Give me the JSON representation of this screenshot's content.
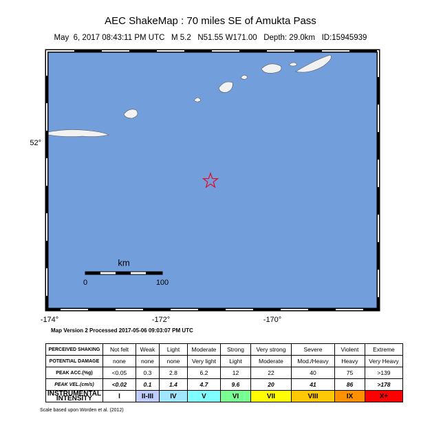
{
  "header": {
    "title": "AEC ShakeMap : 70 miles SE of Amukta Pass",
    "subtitle": "May  6, 2017 08:43:11 PM UTC   M 5.2   N51.55 W171.00   Depth: 29.0km   ID:15945939"
  },
  "map": {
    "lat_labels": [
      "52°"
    ],
    "lon_labels": [
      "-174°",
      "-172°",
      "-170°"
    ],
    "scale": {
      "unit": "km",
      "labels": [
        "0",
        "100"
      ]
    },
    "version": "Map Version 2 Processed 2017-05-06 09:03:07 PM UTC"
  },
  "table": {
    "rows": [
      [
        "PERCEIVED SHAKING",
        "Not felt",
        "Weak",
        "Light",
        "Moderate",
        "Strong",
        "Very strong",
        "Severe",
        "Violent",
        "Extreme"
      ],
      [
        "POTENTIAL DAMAGE",
        "none",
        "none",
        "none",
        "Very light",
        "Light",
        "Moderate",
        "Mod./Heavy",
        "Heavy",
        "Very Heavy"
      ],
      [
        "PEAK ACC.(%g)",
        "<0.05",
        "0.3",
        "2.8",
        "6.2",
        "12",
        "22",
        "40",
        "75",
        ">139"
      ],
      [
        "PEAK VEL.(cm/s)",
        "<0.02",
        "0.1",
        "1.4",
        "4.7",
        "9.6",
        "20",
        "41",
        "86",
        ">178"
      ],
      [
        "INSTRUMENTAL INTENSITY",
        "I",
        "II-III",
        "IV",
        "V",
        "VI",
        "VII",
        "VIII",
        "IX",
        "X+"
      ]
    ]
  },
  "footer": "Scale based upon Worden et al. (2012)"
}
